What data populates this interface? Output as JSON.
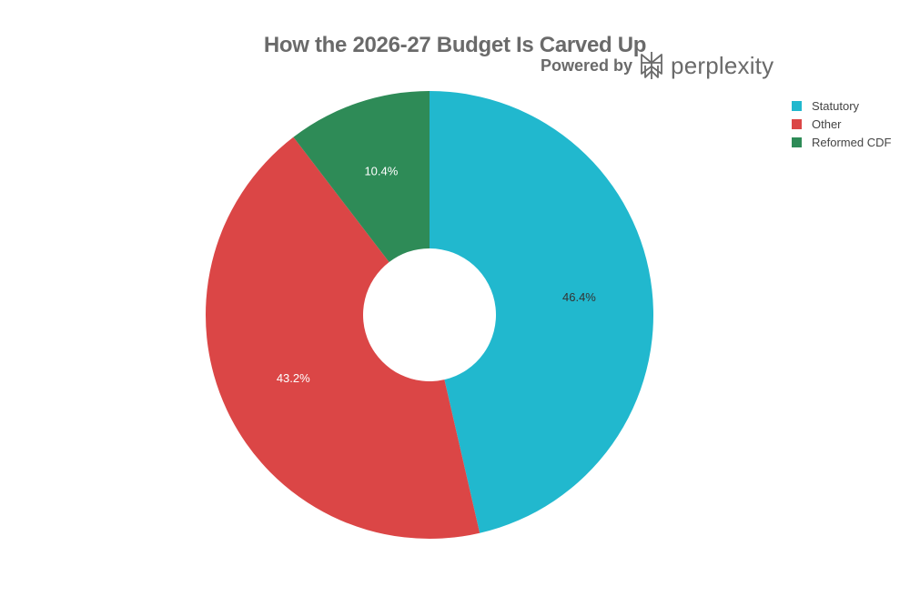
{
  "chart_data": {
    "type": "pie",
    "title": "How the 2026-27 Budget Is Carved Up",
    "donut": true,
    "categories": [
      "Statutory",
      "Other",
      "Reformed CDF"
    ],
    "values": [
      46.4,
      43.2,
      10.4
    ],
    "data_labels": [
      "46.4%",
      "43.2%",
      "10.4%"
    ],
    "colors": [
      "#21b8ce",
      "#db4646",
      "#2e8b57"
    ],
    "label_colors": [
      "#333333",
      "#ffffff",
      "#ffffff"
    ],
    "legend_position": "top-right"
  },
  "branding": {
    "powered_by": "Powered by",
    "name": "perplexity"
  }
}
